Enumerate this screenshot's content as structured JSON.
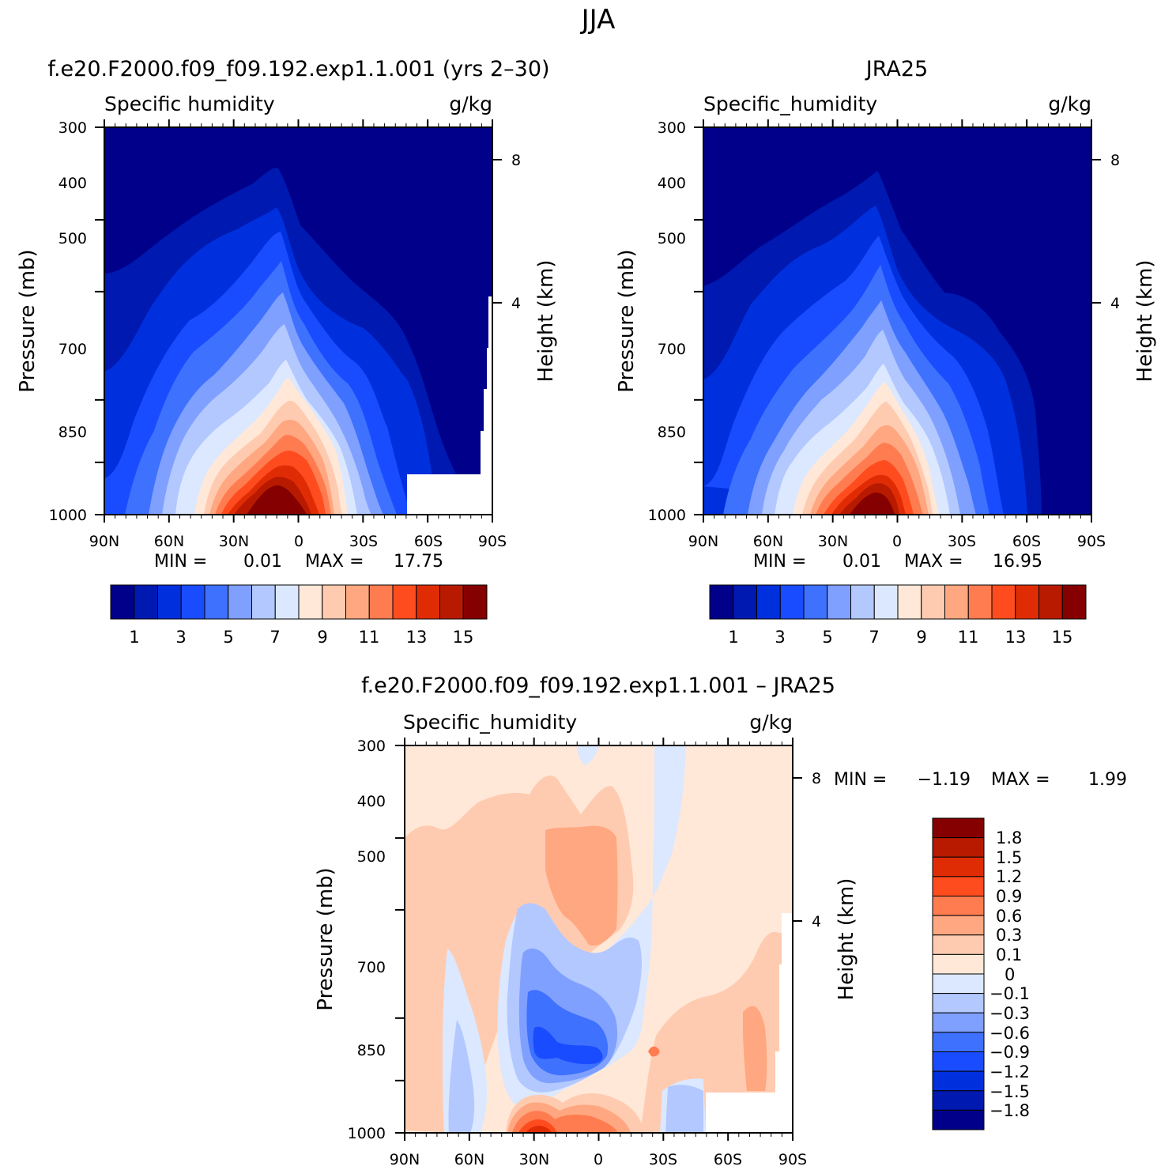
{
  "figure": {
    "title": "JJA",
    "panels": [
      {
        "title": "f.e20.F2000.f09_f09.192.exp1.1.001 (yrs 2–30)",
        "left_label": "Specific humidity",
        "right_label": "g/kg",
        "y_axis_title": "Pressure (mb)",
        "right_axis_title": "Height (km)",
        "min_label": "MIN =",
        "min_value": "0.01",
        "max_label": "MAX =",
        "max_value": "17.75"
      },
      {
        "title": "JRA25",
        "left_label": "Specific_humidity",
        "right_label": "g/kg",
        "y_axis_title": "Pressure (mb)",
        "right_axis_title": "Height (km)",
        "min_label": "MIN =",
        "min_value": "0.01",
        "max_label": "MAX =",
        "max_value": "16.95"
      },
      {
        "title": "f.e20.F2000.f09_f09.192.exp1.1.001 – JRA25",
        "left_label": "Specific_humidity",
        "right_label": "g/kg",
        "y_axis_title": "Pressure (mb)",
        "right_axis_title": "Height (km)",
        "min_label": "MIN =",
        "min_value": "−1.19",
        "max_label": "MAX =",
        "max_value": "1.99"
      }
    ],
    "x_ticks": [
      "90N",
      "60N",
      "30N",
      "0",
      "30S",
      "60S",
      "90S"
    ],
    "y_ticks": [
      "300",
      "400",
      "500",
      "700",
      "850",
      "1000"
    ],
    "height_ticks": [
      "8",
      "4"
    ],
    "abs_colorbar": {
      "colors": [
        "#00008a",
        "#0019b0",
        "#0030dd",
        "#1a4cff",
        "#3f71ff",
        "#7fa0ff",
        "#b2c8ff",
        "#dbe8ff",
        "#ffe8d8",
        "#ffcbb0",
        "#ffa780",
        "#ff7c50",
        "#ff4c1e",
        "#e02c05",
        "#b81a00",
        "#850000"
      ],
      "labels": [
        "1",
        "3",
        "5",
        "7",
        "9",
        "11",
        "13",
        "15"
      ]
    },
    "diff_colorbar": {
      "colors": [
        "#00008a",
        "#0019b0",
        "#0030dd",
        "#1a4cff",
        "#3f71ff",
        "#7fa0ff",
        "#b2c8ff",
        "#dbe8ff",
        "#ffe8d8",
        "#ffcbb0",
        "#ffa780",
        "#ff7c50",
        "#ff4c1e",
        "#e02c05",
        "#b81a00",
        "#850000"
      ],
      "labels": [
        "1.8",
        "1.5",
        "1.2",
        "0.9",
        "0.6",
        "0.3",
        "0.1",
        "0",
        "−0.1",
        "−0.3",
        "−0.6",
        "−0.9",
        "−1.2",
        "−1.5",
        "−1.8"
      ]
    }
  },
  "chart_data": [
    {
      "type": "heatmap",
      "title": "f.e20.F2000.f09_f09.192.exp1.1.001 (yrs 2–30)",
      "variable": "Specific humidity",
      "units": "g/kg",
      "xlabel": "",
      "ylabel": "Pressure (mb)",
      "y2label": "Height (km)",
      "x_range": [
        "90N",
        "90S"
      ],
      "y_range_mb": [
        1000,
        300
      ],
      "levels": [
        1,
        2,
        3,
        4,
        5,
        6,
        7,
        8,
        9,
        10,
        11,
        12,
        13,
        14,
        15
      ],
      "min": 0.01,
      "max": 17.75,
      "contour_tops_lat_mb": [
        {
          "level": 1,
          "points": [
            [
              -90,
              575
            ],
            [
              -60,
              545
            ],
            [
              -30,
              450
            ],
            [
              -10,
              375
            ],
            [
              0,
              410
            ],
            [
              20,
              560
            ],
            [
              40,
              700
            ],
            [
              60,
              850
            ],
            [
              75,
              1000
            ]
          ]
        },
        {
          "level": 3,
          "points": [
            [
              -90,
              910
            ],
            [
              -75,
              780
            ],
            [
              -55,
              600
            ],
            [
              -30,
              520
            ],
            [
              -10,
              440
            ],
            [
              5,
              580
            ],
            [
              20,
              700
            ],
            [
              35,
              800
            ],
            [
              55,
              1000
            ]
          ]
        },
        {
          "level": 5,
          "points": [
            [
              -80,
              1000
            ],
            [
              -70,
              830
            ],
            [
              -50,
              720
            ],
            [
              -30,
              640
            ],
            [
              -10,
              540
            ],
            [
              5,
              650
            ],
            [
              20,
              780
            ],
            [
              40,
              1000
            ]
          ]
        },
        {
          "level": 7,
          "points": [
            [
              -60,
              1000
            ],
            [
              -45,
              820
            ],
            [
              -20,
              690
            ],
            [
              -5,
              640
            ],
            [
              10,
              780
            ],
            [
              25,
              1000
            ]
          ]
        },
        {
          "level": 9,
          "points": [
            [
              -45,
              1000
            ],
            [
              -30,
              880
            ],
            [
              -10,
              790
            ],
            [
              5,
              820
            ],
            [
              20,
              1000
            ]
          ]
        },
        {
          "level": 11,
          "points": [
            [
              -35,
              1000
            ],
            [
              -20,
              890
            ],
            [
              -10,
              840
            ],
            [
              5,
              880
            ],
            [
              15,
              1000
            ]
          ]
        },
        {
          "level": 13,
          "points": [
            [
              -25,
              1000
            ],
            [
              -15,
              930
            ],
            [
              -5,
              905
            ],
            [
              5,
              930
            ],
            [
              10,
              1000
            ]
          ]
        },
        {
          "level": 15,
          "points": [
            [
              -18,
              1000
            ],
            [
              -10,
              965
            ],
            [
              0,
              960
            ],
            [
              6,
              1000
            ]
          ]
        }
      ]
    },
    {
      "type": "heatmap",
      "title": "JRA25",
      "variable": "Specific_humidity",
      "units": "g/kg",
      "xlabel": "",
      "ylabel": "Pressure (mb)",
      "y2label": "Height (km)",
      "x_range": [
        "90N",
        "90S"
      ],
      "y_range_mb": [
        1000,
        300
      ],
      "levels": [
        1,
        2,
        3,
        4,
        5,
        6,
        7,
        8,
        9,
        10,
        11,
        12,
        13,
        14,
        15
      ],
      "min": 0.01,
      "max": 16.95,
      "contour_tops_lat_mb": [
        {
          "level": 1,
          "points": [
            [
              -90,
              560
            ],
            [
              -60,
              530
            ],
            [
              -30,
              455
            ],
            [
              -10,
              385
            ],
            [
              0,
              420
            ],
            [
              20,
              560
            ],
            [
              40,
              700
            ],
            [
              60,
              850
            ],
            [
              70,
              1000
            ]
          ]
        },
        {
          "level": 3,
          "points": [
            [
              -90,
              900
            ],
            [
              -75,
              760
            ],
            [
              -55,
              610
            ],
            [
              -30,
              530
            ],
            [
              -10,
              450
            ],
            [
              5,
              580
            ],
            [
              20,
              700
            ],
            [
              35,
              810
            ],
            [
              55,
              1000
            ]
          ]
        },
        {
          "level": 5,
          "points": [
            [
              -78,
              1000
            ],
            [
              -65,
              830
            ],
            [
              -50,
              720
            ],
            [
              -30,
              640
            ],
            [
              -10,
              540
            ],
            [
              5,
              650
            ],
            [
              20,
              780
            ],
            [
              40,
              1000
            ]
          ]
        },
        {
          "level": 7,
          "points": [
            [
              -55,
              1000
            ],
            [
              -40,
              820
            ],
            [
              -20,
              690
            ],
            [
              -5,
              650
            ],
            [
              10,
              780
            ],
            [
              25,
              1000
            ]
          ]
        },
        {
          "level": 9,
          "points": [
            [
              -43,
              1000
            ],
            [
              -30,
              880
            ],
            [
              -10,
              800
            ],
            [
              5,
              830
            ],
            [
              20,
              1000
            ]
          ]
        },
        {
          "level": 11,
          "points": [
            [
              -33,
              1000
            ],
            [
              -20,
              890
            ],
            [
              -10,
              850
            ],
            [
              5,
              890
            ],
            [
              15,
              1000
            ]
          ]
        },
        {
          "level": 13,
          "points": [
            [
              -24,
              1000
            ],
            [
              -15,
              930
            ],
            [
              -8,
              915
            ],
            [
              2,
              940
            ],
            [
              8,
              1000
            ]
          ]
        },
        {
          "level": 15,
          "points": [
            [
              -16,
              1000
            ],
            [
              -10,
              965
            ],
            [
              -2,
              965
            ],
            [
              2,
              1000
            ]
          ]
        }
      ]
    },
    {
      "type": "heatmap",
      "title": "f.e20.F2000.f09_f09.192.exp1.1.001 – JRA25",
      "variable": "Specific_humidity",
      "units": "g/kg",
      "xlabel": "",
      "ylabel": "Pressure (mb)",
      "y2label": "Height (km)",
      "x_range": [
        "90N",
        "90S"
      ],
      "y_range_mb": [
        1000,
        300
      ],
      "levels": [
        -1.8,
        -1.5,
        -1.2,
        -0.9,
        -0.6,
        -0.3,
        -0.1,
        0,
        0.1,
        0.3,
        0.6,
        0.9,
        1.2,
        1.5,
        1.8
      ],
      "min": -1.19,
      "max": 1.99,
      "regions": [
        {
          "value_range": [
            0.1,
            0.3
          ],
          "lat": [
            -88,
            25
          ],
          "mb": [
            480,
            1000
          ]
        },
        {
          "value_range": [
            0.3,
            0.6
          ],
          "lat": [
            -25,
            5
          ],
          "mb": [
            480,
            620
          ]
        },
        {
          "value_range": [
            -0.3,
            -0.1
          ],
          "lat": [
            28,
            40
          ],
          "mb": [
            300,
            700
          ]
        },
        {
          "value_range": [
            -1.2,
            -0.6
          ],
          "lat": [
            -32,
            -2
          ],
          "mb": [
            700,
            900
          ]
        },
        {
          "value_range": [
            0.9,
            1.5
          ],
          "lat": [
            -40,
            5
          ],
          "mb": [
            930,
            1000
          ]
        }
      ]
    }
  ]
}
